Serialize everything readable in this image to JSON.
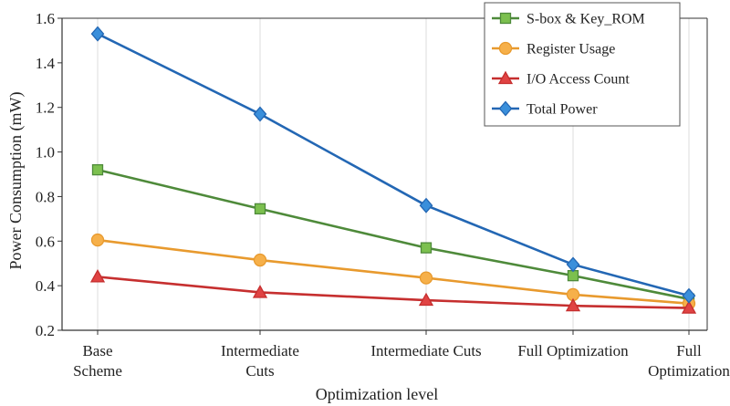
{
  "chart_data": {
    "type": "line",
    "title": "",
    "xlabel": "Optimization level",
    "ylabel": "Power Consumption (mW)",
    "ylim": [
      0.2,
      1.6
    ],
    "yticks": [
      "0.2",
      "0.4",
      "0.6",
      "0.8",
      "1.0",
      "1.2",
      "1.4",
      "1.6"
    ],
    "grid": "vertical",
    "legend_position": "top-right",
    "categories": [
      [
        "Base",
        "Scheme"
      ],
      [
        "Intermediate",
        "Cuts"
      ],
      [
        "Intermediate Cuts"
      ],
      [
        "Full Optimization"
      ],
      [
        "Full",
        "Optimization"
      ]
    ],
    "series": [
      {
        "name": "S-box & Key_ROM",
        "color": "#4e8a3a",
        "fill": "#7cc04f",
        "marker": "square",
        "values": [
          0.92,
          0.745,
          0.57,
          0.445,
          0.34
        ]
      },
      {
        "name": "Register Usage",
        "color": "#e89a2e",
        "fill": "#f6b04a",
        "marker": "circle",
        "values": [
          0.605,
          0.515,
          0.435,
          0.36,
          0.32
        ]
      },
      {
        "name": "I/O Access Count",
        "color": "#c62f2f",
        "fill": "#e04343",
        "marker": "triangle",
        "values": [
          0.44,
          0.37,
          0.335,
          0.31,
          0.3
        ]
      },
      {
        "name": "Total Power",
        "color": "#2367b4",
        "fill": "#3a8fdb",
        "marker": "diamond",
        "values": [
          1.53,
          1.17,
          0.76,
          0.495,
          0.355
        ]
      }
    ]
  }
}
